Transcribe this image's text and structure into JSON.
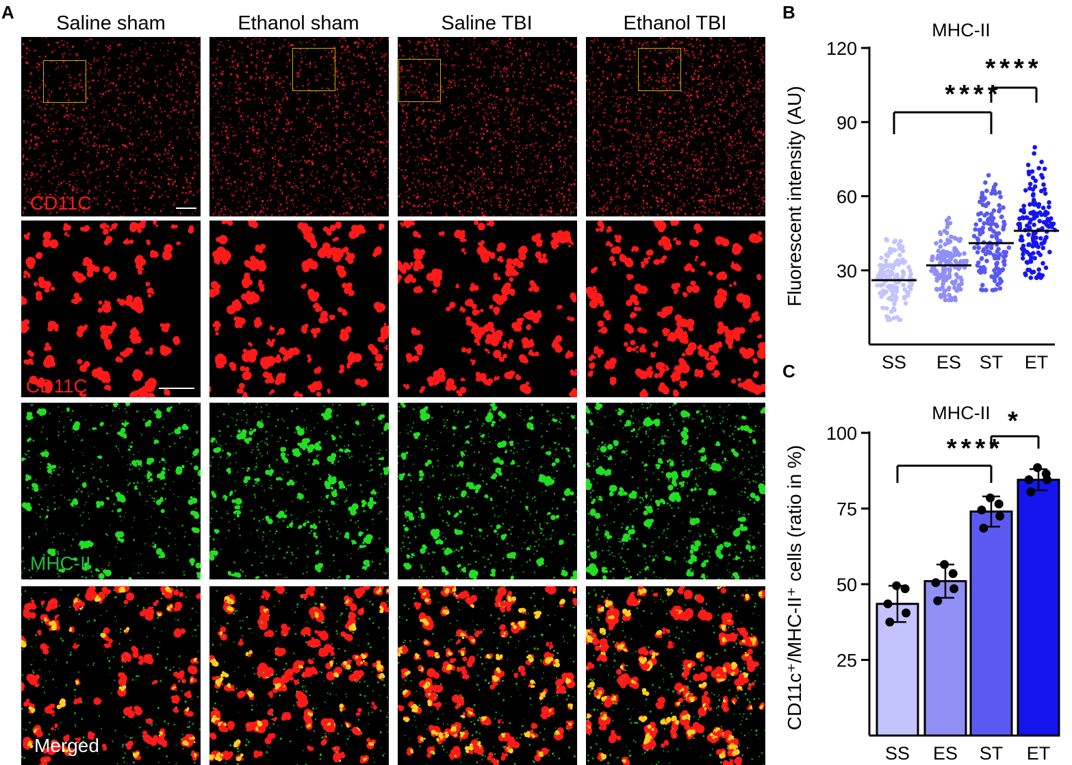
{
  "panels": {
    "a": "A",
    "b": "B",
    "c": "C"
  },
  "columns": [
    "Saline sham",
    "Ethanol sham",
    "Saline TBI",
    "Ethanol TBI"
  ],
  "row_labels": {
    "row1": "CD11C",
    "row2": "CD11C",
    "row3": "MHC-II",
    "row4": "Merged"
  },
  "colors": {
    "red_stain": "#ff1a1a",
    "green_stain": "#22dd22",
    "merge_yellow": "#ffd21a",
    "inset_box": "#c8b400",
    "SS": "#c3c3ff",
    "ES": "#8f8ff5",
    "ST": "#5a5af2",
    "ET": "#1515f0"
  },
  "chart_data": [
    {
      "type": "scatter",
      "title": "MHC-II",
      "ylabel": "Fluorescent intensity (AU)",
      "xlabel": "",
      "categories": [
        "SS",
        "ES",
        "ST",
        "ET"
      ],
      "ylim": [
        0,
        120
      ],
      "yticks": [
        30,
        60,
        90,
        120
      ],
      "means": [
        26,
        32,
        41,
        46
      ],
      "ranges": [
        [
          10,
          46
        ],
        [
          18,
          52
        ],
        [
          22,
          74
        ],
        [
          27,
          85
        ]
      ],
      "significance": [
        {
          "from": "SS",
          "to": "ST",
          "label": "****"
        },
        {
          "from": "ST",
          "to": "ET",
          "label": "****"
        }
      ]
    },
    {
      "type": "bar",
      "title": "MHC-II",
      "ylabel": "CD11c⁺/MHC-II⁺ cells (ratio in %)",
      "xlabel": "",
      "categories": [
        "SS",
        "ES",
        "ST",
        "ET"
      ],
      "ylim": [
        0,
        100
      ],
      "yticks": [
        25,
        50,
        75,
        100
      ],
      "values": [
        43.5,
        51,
        74,
        84.5
      ],
      "errors": [
        6,
        5.5,
        5,
        3.5
      ],
      "points": [
        [
          49.5,
          48.5,
          43.5,
          40.5,
          37.5
        ],
        [
          56.5,
          53.5,
          50.5,
          48.5,
          44.5
        ],
        [
          78.5,
          76.5,
          74.5,
          72.5,
          68.5
        ],
        [
          88.5,
          86.5,
          84.5,
          84.5,
          80.5
        ]
      ],
      "significance": [
        {
          "from": "SS",
          "to": "ST",
          "label": "****"
        },
        {
          "from": "ST",
          "to": "ET",
          "label": "*"
        }
      ]
    }
  ]
}
